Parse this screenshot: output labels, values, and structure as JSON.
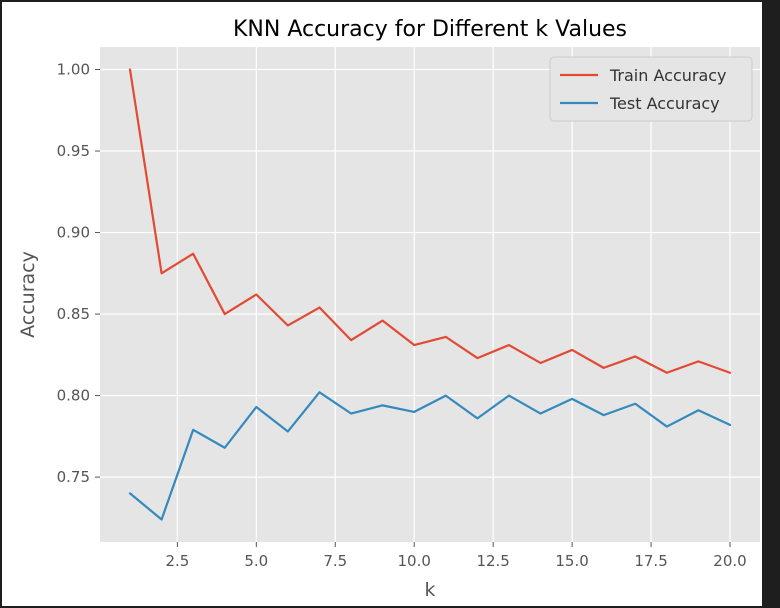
{
  "chart_data": {
    "type": "line",
    "title": "KNN Accuracy for Different k Values",
    "xlabel": "k",
    "ylabel": "Accuracy",
    "x": [
      1,
      2,
      3,
      4,
      5,
      6,
      7,
      8,
      9,
      10,
      11,
      12,
      13,
      14,
      15,
      16,
      17,
      18,
      19,
      20
    ],
    "series": [
      {
        "name": "Train Accuracy",
        "color": "#E24A33",
        "values": [
          1.0,
          0.875,
          0.887,
          0.85,
          0.862,
          0.843,
          0.854,
          0.834,
          0.846,
          0.831,
          0.836,
          0.823,
          0.831,
          0.82,
          0.828,
          0.817,
          0.824,
          0.814,
          0.821,
          0.814
        ]
      },
      {
        "name": "Test Accuracy",
        "color": "#348ABD",
        "values": [
          0.74,
          0.724,
          0.779,
          0.768,
          0.793,
          0.778,
          0.802,
          0.789,
          0.794,
          0.79,
          0.8,
          0.786,
          0.8,
          0.789,
          0.798,
          0.788,
          0.795,
          0.781,
          0.791,
          0.782
        ]
      }
    ],
    "xticks": [
      2.5,
      5.0,
      7.5,
      10.0,
      12.5,
      15.0,
      17.5,
      20.0
    ],
    "xtick_labels": [
      "2.5",
      "5.0",
      "7.5",
      "10.0",
      "12.5",
      "15.0",
      "17.5",
      "20.0"
    ],
    "yticks": [
      0.75,
      0.8,
      0.85,
      0.9,
      0.95,
      1.0
    ],
    "ytick_labels": [
      "0.75",
      "0.80",
      "0.85",
      "0.90",
      "0.95",
      "1.00"
    ],
    "xlim": [
      0.05,
      20.95
    ],
    "ylim": [
      0.7102,
      1.0138
    ],
    "grid": true,
    "legend_position": "top-right",
    "style": "ggplot",
    "plot_background": "#E5E5E5"
  }
}
